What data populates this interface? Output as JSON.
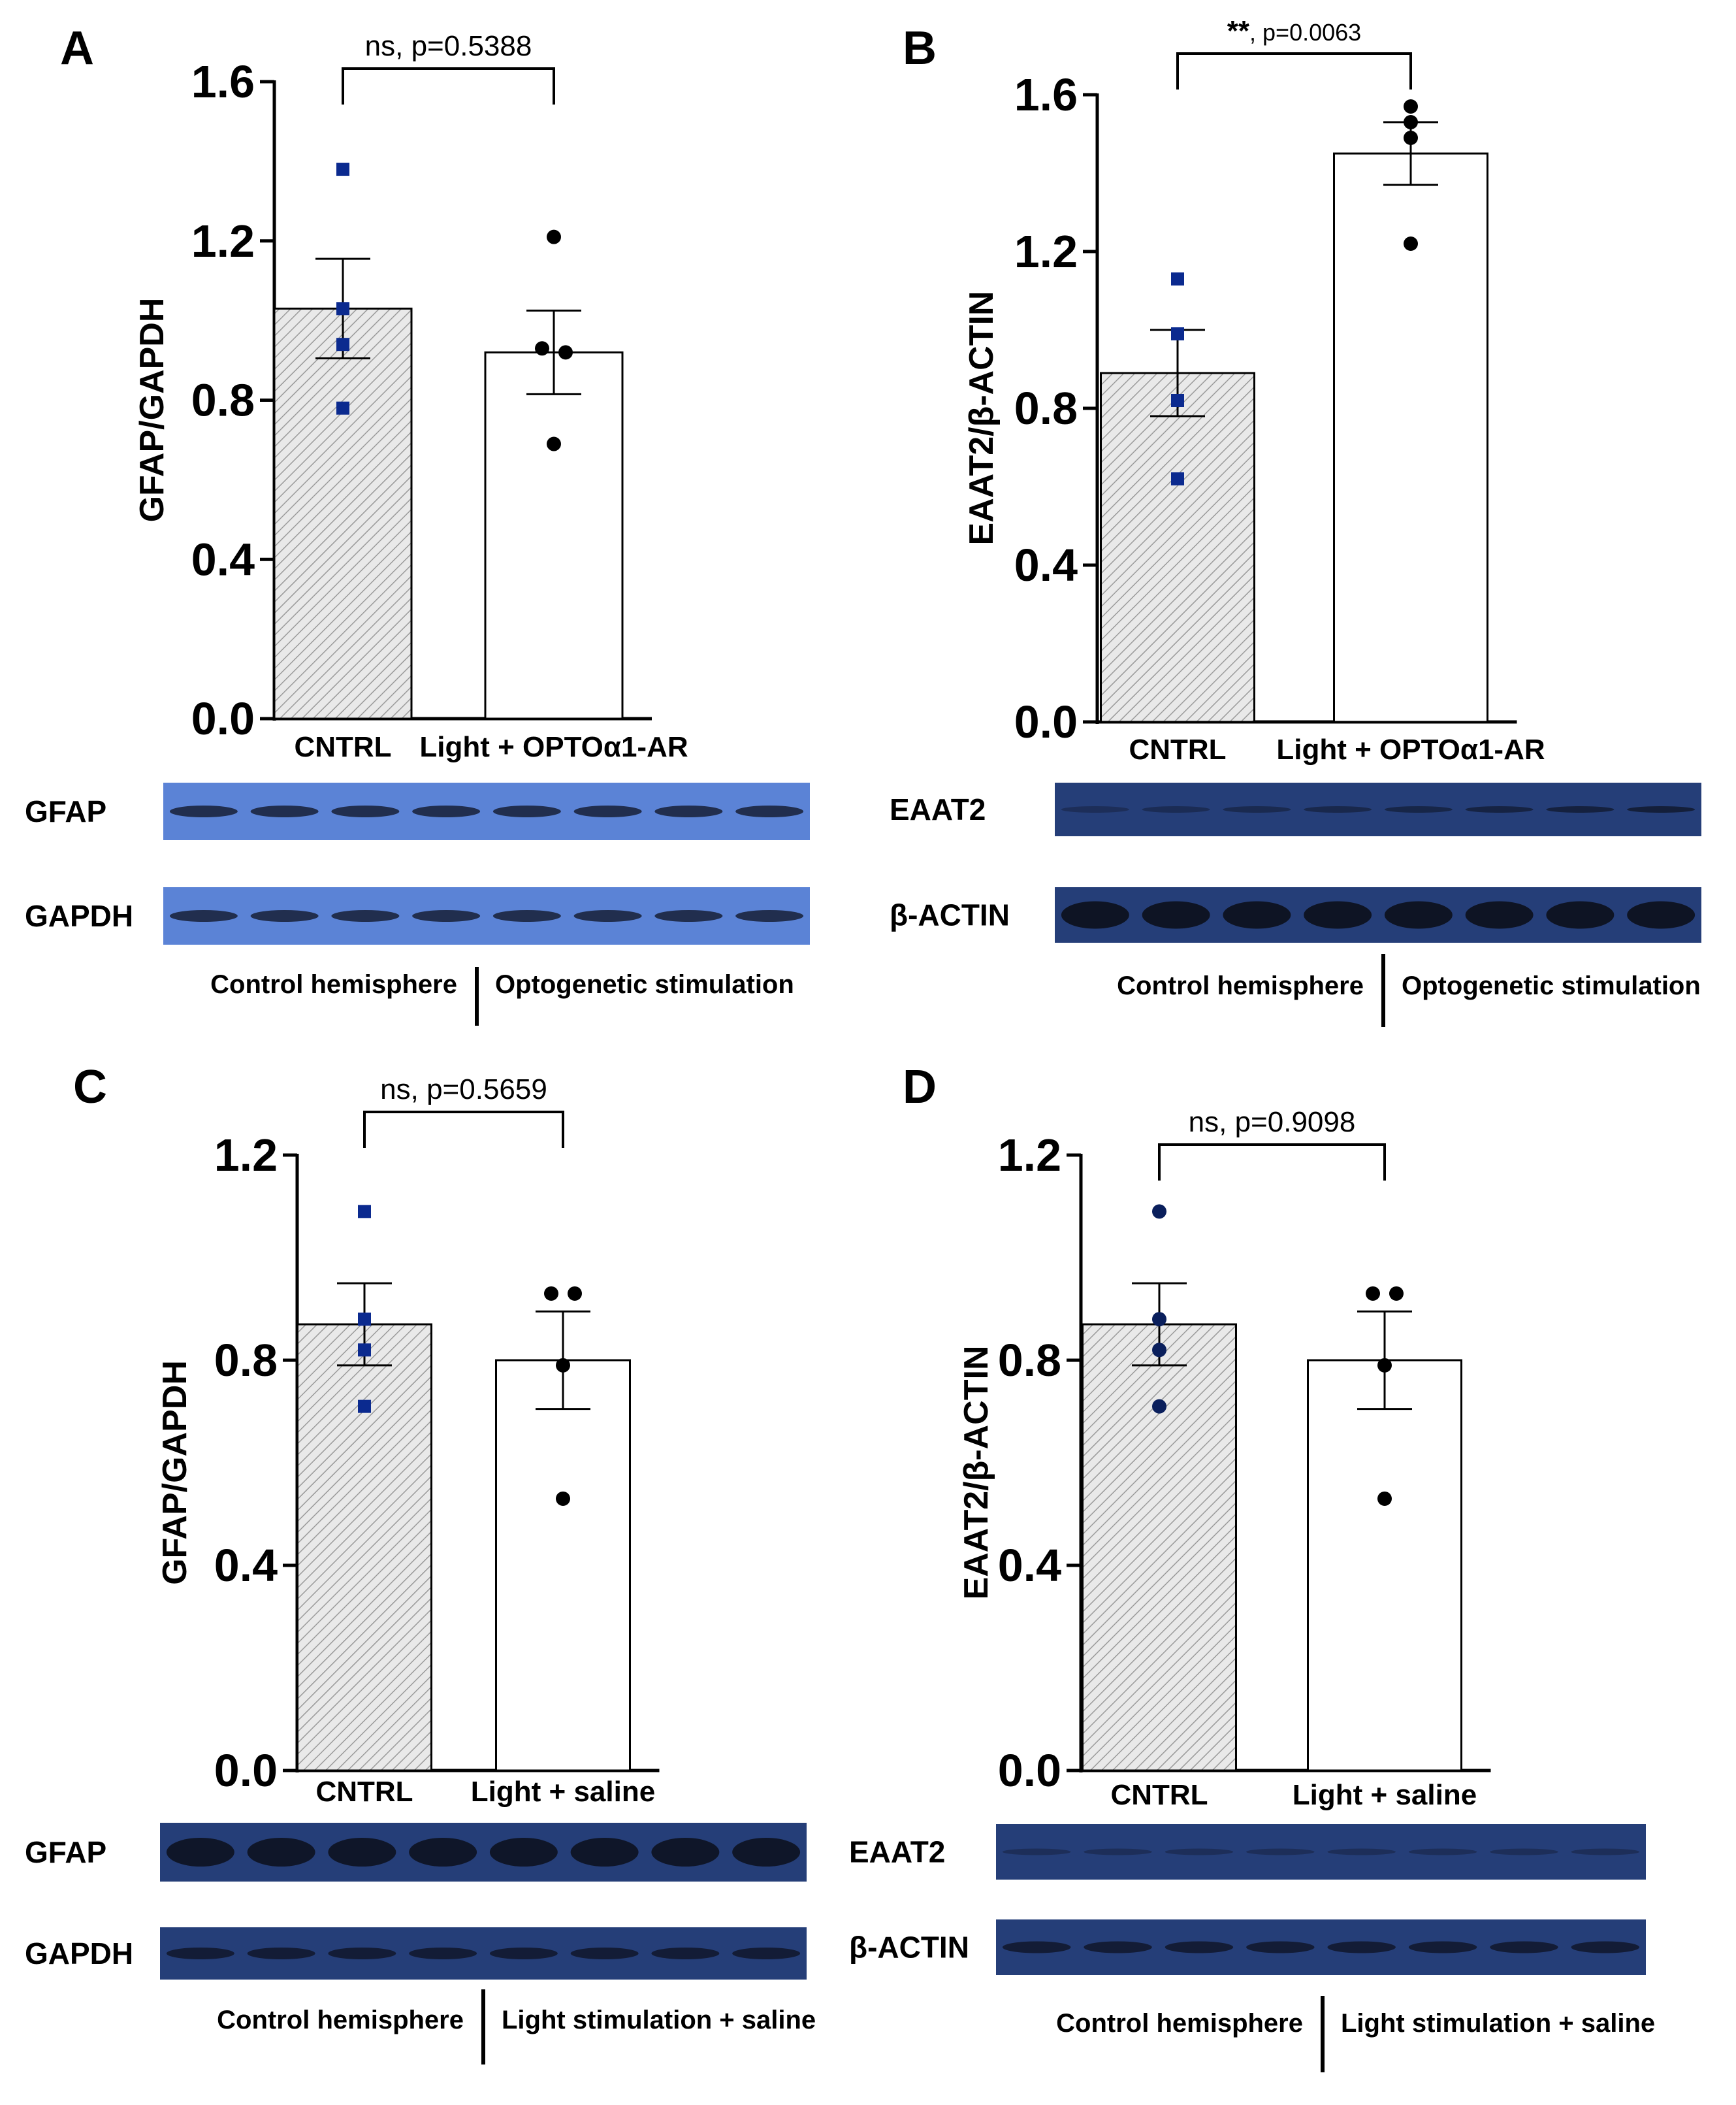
{
  "chart_data": [
    {
      "panel": "A",
      "type": "bar",
      "ylabel": "GFAP/GAPDH",
      "ylim": [
        0,
        1.6
      ],
      "yticks": [
        "0.0",
        "0.4",
        "0.8",
        "1.2",
        "1.6"
      ],
      "categories": [
        "CNTRL",
        "Light + OPTOα1-AR"
      ],
      "values": [
        1.03,
        0.92
      ],
      "sem": [
        0.125,
        0.105
      ],
      "points": [
        [
          1.38,
          1.03,
          0.94,
          0.78
        ],
        [
          1.21,
          0.93,
          0.92,
          0.69
        ]
      ],
      "point_markers": [
        "square",
        "circle"
      ],
      "significance": "ns, p=0.5388",
      "blots": [
        {
          "label": "GFAP"
        },
        {
          "label": "GAPDH"
        }
      ],
      "blot_groups": [
        "Control hemisphere",
        "Optogenetic stimulation"
      ]
    },
    {
      "panel": "B",
      "type": "bar",
      "ylabel": "EAAT2/β-ACTIN",
      "ylim": [
        0,
        1.6
      ],
      "yticks": [
        "0.0",
        "0.4",
        "0.8",
        "1.2",
        "1.6"
      ],
      "categories": [
        "CNTRL",
        "Light + OPTOα1-AR"
      ],
      "values": [
        0.89,
        1.45
      ],
      "sem": [
        0.11,
        0.08
      ],
      "points": [
        [
          1.13,
          0.99,
          0.82,
          0.62
        ],
        [
          1.57,
          1.53,
          1.49,
          1.22
        ]
      ],
      "point_markers": [
        "square",
        "circle"
      ],
      "significance_stars": "**",
      "significance": ", p=0.0063",
      "blots": [
        {
          "label": "EAAT2"
        },
        {
          "label": "β-ACTIN"
        }
      ],
      "blot_groups": [
        "Control hemisphere",
        "Optogenetic stimulation"
      ]
    },
    {
      "panel": "C",
      "type": "bar",
      "ylabel": "GFAP/GAPDH",
      "ylim": [
        0,
        1.2
      ],
      "yticks": [
        "0.0",
        "0.4",
        "0.8",
        "1.2"
      ],
      "categories": [
        "CNTRL",
        "Light + saline"
      ],
      "values": [
        0.87,
        0.8
      ],
      "sem": [
        0.08,
        0.095
      ],
      "points": [
        [
          1.09,
          0.88,
          0.82,
          0.71
        ],
        [
          0.93,
          0.93,
          0.79,
          0.53
        ]
      ],
      "point_markers": [
        "square",
        "circle"
      ],
      "significance": "ns, p=0.5659",
      "blots": [
        {
          "label": "GFAP"
        },
        {
          "label": "GAPDH"
        }
      ],
      "blot_groups": [
        "Control hemisphere",
        "Light stimulation + saline"
      ]
    },
    {
      "panel": "D",
      "type": "bar",
      "ylabel": "EAAT2/β-ACTIN",
      "ylim": [
        0,
        1.2
      ],
      "yticks": [
        "0.0",
        "0.4",
        "0.8",
        "1.2"
      ],
      "categories": [
        "CNTRL",
        "Light + saline"
      ],
      "values": [
        0.87,
        0.8
      ],
      "sem": [
        0.08,
        0.095
      ],
      "points": [
        [
          1.09,
          0.88,
          0.82,
          0.71
        ],
        [
          0.93,
          0.93,
          0.79,
          0.53
        ]
      ],
      "point_markers": [
        "circle",
        "circle"
      ],
      "significance": "ns, p=0.9098",
      "blots": [
        {
          "label": "EAAT2"
        },
        {
          "label": "β-ACTIN"
        }
      ],
      "blot_groups": [
        "Control hemisphere",
        "Light stimulation + saline"
      ]
    }
  ],
  "colors": {
    "control_marker": "#0b2a8f",
    "control_marker_dark": "#0a1f5c",
    "treated_marker": "#000000",
    "blot_light": "#5b83d6",
    "blot_dark": "#253e78"
  }
}
